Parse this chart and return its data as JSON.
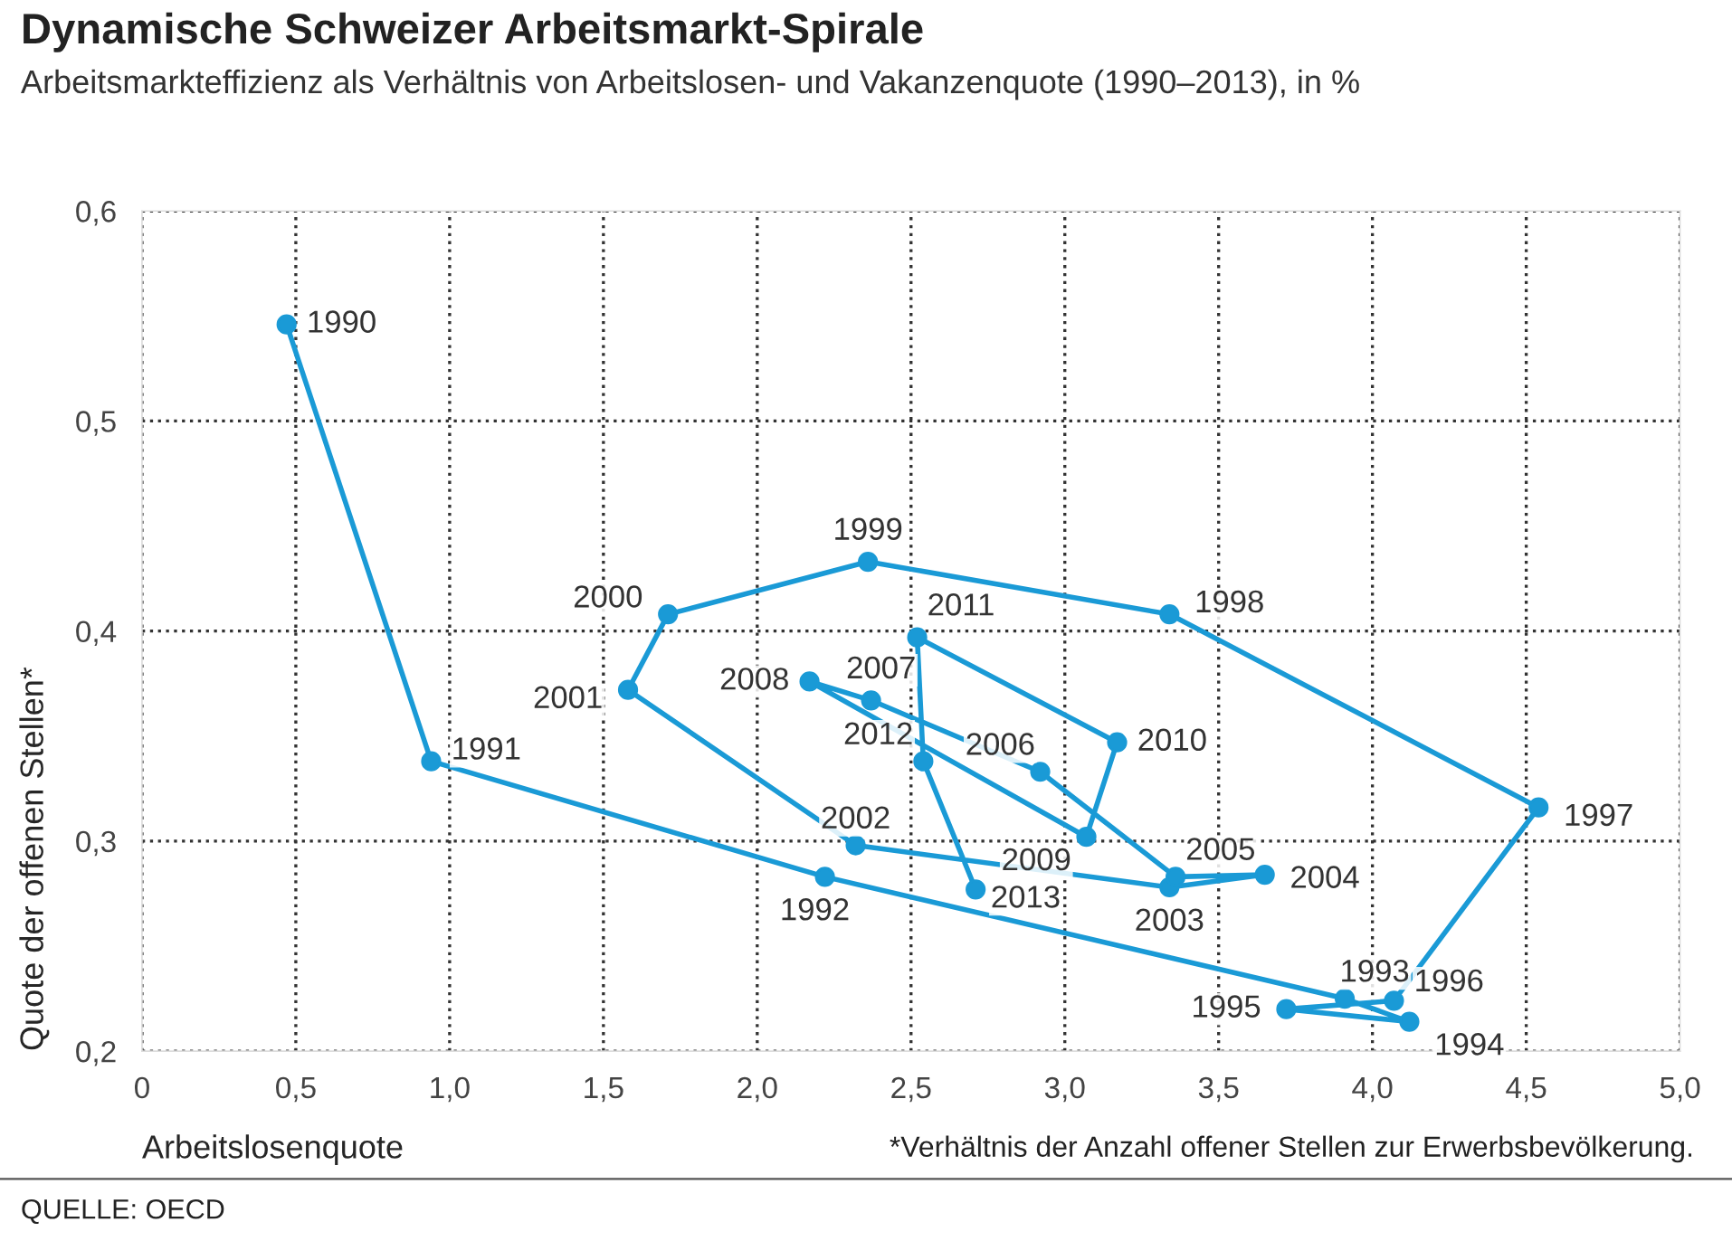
{
  "chart_data": {
    "type": "line",
    "title": "Dynamische Schweizer Arbeitsmarkt-Spirale",
    "subtitle": "Arbeitsmarkteffizienz als Verhältnis von Arbeitslosen- und Vakanzenquote (1990–2013), in %",
    "xlabel": "Arbeitslosenquote",
    "ylabel": "Quote der offenen Stellen*",
    "series": [
      {
        "color": "#1a9ad6",
        "x": [
          0.47,
          0.94,
          2.22,
          3.91,
          4.12,
          3.72,
          4.07,
          4.54,
          3.34,
          2.36,
          1.71,
          1.58,
          2.32,
          3.34,
          3.65,
          3.36,
          2.92,
          2.37,
          2.17,
          3.07,
          3.17,
          2.52,
          2.54,
          2.71
        ],
        "values": [
          0.546,
          0.338,
          0.283,
          0.225,
          0.214,
          0.22,
          0.224,
          0.316,
          0.408,
          0.433,
          0.408,
          0.372,
          0.298,
          0.278,
          0.284,
          0.283,
          0.333,
          0.367,
          0.376,
          0.302,
          0.347,
          0.397,
          0.338,
          0.277
        ]
      }
    ],
    "marker": "circle",
    "line_style": "solid",
    "grid": true,
    "legend": false,
    "xlim": [
      0,
      5
    ],
    "xticks": [
      0,
      {
        "value": 0.5,
        "label": "0,5"
      },
      {
        "value": 1,
        "label": "1,0"
      },
      {
        "value": 1.5,
        "label": "1,5"
      },
      {
        "value": 2,
        "label": "2,0"
      },
      {
        "value": 2.5,
        "label": "2,5"
      },
      {
        "value": 3,
        "label": "3,0"
      },
      {
        "value": 3.5,
        "label": "3,5"
      },
      {
        "value": 4,
        "label": "4,0"
      },
      {
        "value": 4.5,
        "label": "4,5"
      },
      {
        "value": 5,
        "label": "5,0"
      }
    ],
    "ylim": [
      0.2,
      0.6
    ],
    "yticks": [
      {
        "value": 0.2,
        "label": "0,2"
      },
      {
        "value": 0.3,
        "label": "0,3"
      },
      {
        "value": 0.4,
        "label": "0,4"
      },
      {
        "value": 0.5,
        "label": "0,5"
      },
      {
        "value": 0.6,
        "label": "0,6"
      }
    ],
    "annotations": [
      {
        "text": "1990",
        "x": 0.47,
        "y": 0.546
      },
      {
        "text": "1991",
        "x": 0.94,
        "y": 0.338
      },
      {
        "text": "1992",
        "x": 2.22,
        "y": 0.283
      },
      {
        "text": "1993",
        "x": 3.91,
        "y": 0.225
      },
      {
        "text": "1994",
        "x": 4.12,
        "y": 0.214
      },
      {
        "text": "1995",
        "x": 3.72,
        "y": 0.22
      },
      {
        "text": "1996",
        "x": 4.07,
        "y": 0.224
      },
      {
        "text": "1997",
        "x": 4.54,
        "y": 0.316
      },
      {
        "text": "1998",
        "x": 3.34,
        "y": 0.408
      },
      {
        "text": "1999",
        "x": 2.36,
        "y": 0.433
      },
      {
        "text": "2000",
        "x": 1.71,
        "y": 0.408
      },
      {
        "text": "2001",
        "x": 1.58,
        "y": 0.372
      },
      {
        "text": "2002",
        "x": 2.32,
        "y": 0.298
      },
      {
        "text": "2003",
        "x": 3.34,
        "y": 0.278
      },
      {
        "text": "2004",
        "x": 3.65,
        "y": 0.284
      },
      {
        "text": "2005",
        "x": 3.36,
        "y": 0.283
      },
      {
        "text": "2006",
        "x": 2.92,
        "y": 0.333
      },
      {
        "text": "2007",
        "x": 2.37,
        "y": 0.367
      },
      {
        "text": "2008",
        "x": 2.17,
        "y": 0.376
      },
      {
        "text": "2009",
        "x": 3.07,
        "y": 0.302
      },
      {
        "text": "2010",
        "x": 3.17,
        "y": 0.347
      },
      {
        "text": "2011",
        "x": 2.52,
        "y": 0.397
      },
      {
        "text": "2012",
        "x": 2.54,
        "y": 0.338
      },
      {
        "text": "2013",
        "x": 2.71,
        "y": 0.277
      },
      "*Verhältnis der Anzahl offener Stellen zur Erwerbsbevölkerung.",
      "QUELLE: OECD"
    ]
  }
}
